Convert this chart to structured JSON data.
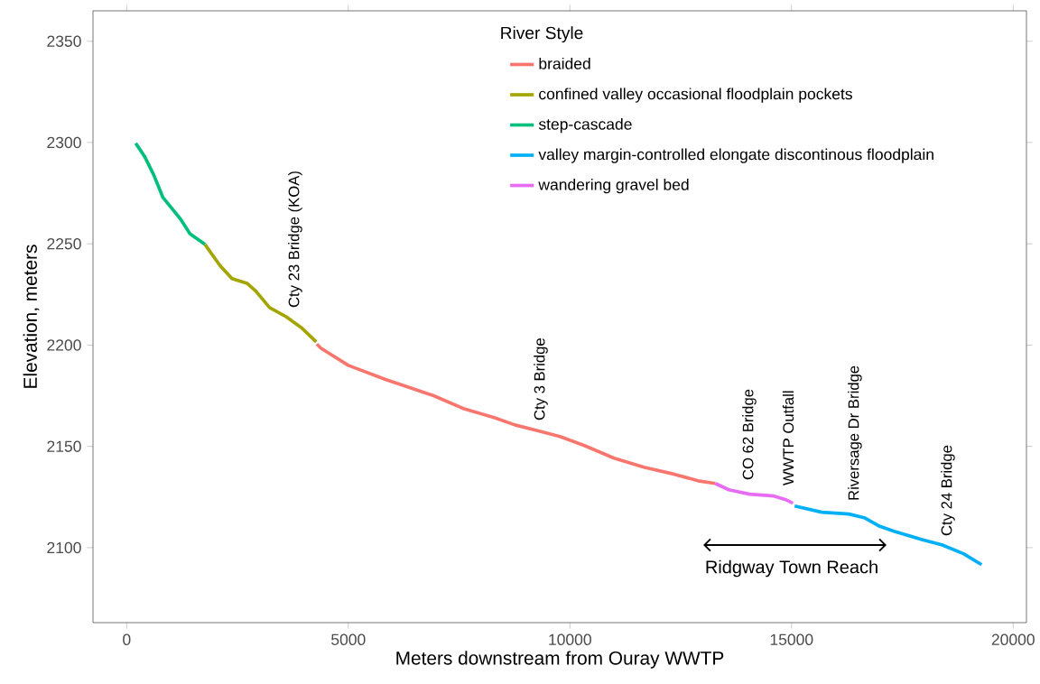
{
  "chart_data": {
    "type": "line",
    "xlabel": "Meters downstream from Ouray WWTP",
    "ylabel": "Elevation, meters",
    "legend_title": "River Style",
    "xlim": [
      -760,
      20300
    ],
    "ylim": [
      2063,
      2365
    ],
    "xticks": [
      0,
      5000,
      10000,
      15000,
      20000
    ],
    "yticks": [
      2100,
      2150,
      2200,
      2250,
      2300,
      2350
    ],
    "legend": "top",
    "grid": false,
    "line_style": "solid",
    "marker": "none",
    "series": [
      {
        "name": "braided",
        "color": "#f8766d",
        "x": [
          4290,
          4379,
          5000,
          5839,
          6925,
          7597,
          8289,
          8758,
          9308,
          9776,
          10326,
          10998,
          11670,
          12363,
          12892,
          13279
        ],
        "values": [
          2200.5,
          2198.5,
          2190,
          2183,
          2175,
          2168.7,
          2164.2,
          2160.6,
          2157.5,
          2154.9,
          2150.4,
          2144.2,
          2139.7,
          2136.2,
          2133,
          2131.7
        ]
      },
      {
        "name": "confined valley occasional floodplain pockets",
        "color": "#a3a500",
        "x": [
          1766,
          2100,
          2376,
          2715,
          2919,
          3224,
          3598,
          3937,
          4277
        ],
        "values": [
          2249.7,
          2239.4,
          2232.8,
          2230.5,
          2226.5,
          2218.5,
          2214,
          2208.7,
          2201.6
        ]
      },
      {
        "name": "step-cascade",
        "color": "#00bf7d",
        "x": [
          204,
          407,
          611,
          815,
          1018,
          1222,
          1426,
          1766
        ],
        "values": [
          2299.6,
          2293,
          2284,
          2273,
          2267.5,
          2262,
          2255,
          2249.7
        ]
      },
      {
        "name": "valley margin-controlled elongate discontinous floodplain",
        "color": "#00b0f6",
        "x": [
          15071,
          15682,
          16293,
          16640,
          16965,
          17312,
          17923,
          18391,
          18880,
          19287
        ],
        "values": [
          2120.6,
          2117.5,
          2116.6,
          2114.8,
          2110.8,
          2108.1,
          2104.1,
          2101.4,
          2097,
          2091.6
        ]
      },
      {
        "name": "wandering gravel bed",
        "color": "#e76bf3",
        "x": [
          13279,
          13585,
          14053,
          14603,
          14868,
          15030
        ],
        "values": [
          2131.7,
          2128.6,
          2126.4,
          2125.5,
          2123.7,
          2122
        ]
      }
    ],
    "annotations": [
      "Cty 23 Bridge (KOA)",
      "Cty 3 Bridge",
      "CO 62 Bridge",
      "WWTP Outfall",
      "Riversage Dr Bridge",
      "Cty 24 Bridge",
      "Ridgway Town Reach"
    ]
  }
}
